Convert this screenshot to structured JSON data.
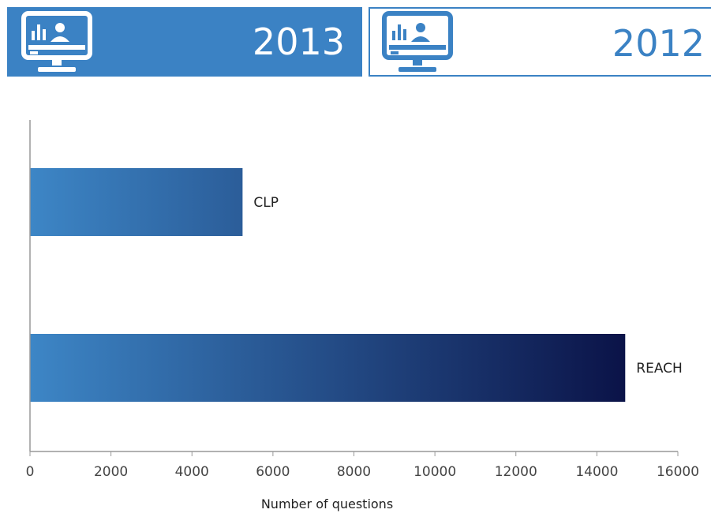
{
  "tabs": [
    {
      "year": "2013",
      "icon": "monitor-chart-user-icon",
      "active": true
    },
    {
      "year": "2012",
      "icon": "monitor-chart-user-icon",
      "active": false
    }
  ],
  "colors": {
    "accent": "#3b82c4",
    "bar_gradient_start": "#3d86c6",
    "bar_gradient_end": "#0b1348",
    "axis": "#999999"
  },
  "chart_data": {
    "type": "bar",
    "orientation": "horizontal",
    "categories": [
      "CLP",
      "REACH"
    ],
    "values": [
      5250,
      14700
    ],
    "title": "",
    "xlabel": "Number of questions",
    "ylabel": "",
    "xlim": [
      0,
      16000
    ],
    "xticks": [
      "0",
      "2000",
      "4000",
      "6000",
      "8000",
      "10000",
      "12000",
      "14000",
      "16000"
    ],
    "grid": false,
    "legend": "none"
  }
}
